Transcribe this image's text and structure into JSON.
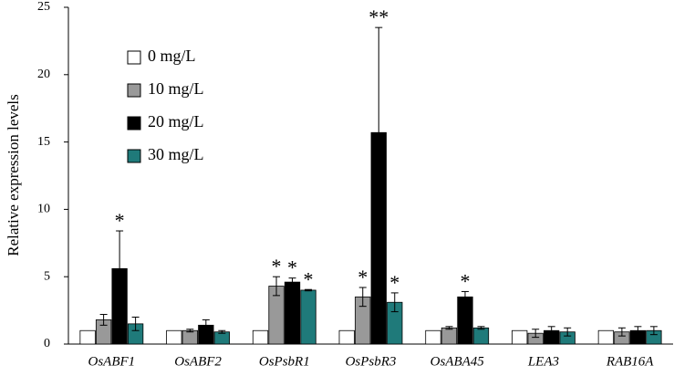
{
  "chart_data": {
    "type": "bar",
    "y_label": "Relative expression levels",
    "categories": [
      "OsABF1",
      "OsABF2",
      "OsPsbR1",
      "OsPsbR3",
      "OsABA45",
      "LEA3",
      "RAB16A"
    ],
    "series": [
      {
        "name": "0 mg/L",
        "color": "#ffffff",
        "values": [
          1,
          1,
          1,
          1,
          1,
          1,
          1
        ]
      },
      {
        "name": "10 mg/L",
        "color": "#999999",
        "values": [
          1.8,
          1.0,
          4.3,
          3.5,
          1.2,
          0.8,
          0.9
        ],
        "errors": [
          0.4,
          0.1,
          0.7,
          0.7,
          0.1,
          0.3,
          0.3
        ],
        "annotations": [
          null,
          null,
          "*",
          "*",
          null,
          null,
          null
        ]
      },
      {
        "name": "20 mg/L",
        "color": "#000000",
        "values": [
          5.6,
          1.4,
          4.6,
          15.7,
          3.5,
          1.0,
          1.0
        ],
        "errors": [
          2.8,
          0.4,
          0.3,
          7.8,
          0.4,
          0.3,
          0.3
        ],
        "annotations": [
          "*",
          null,
          "*",
          "**",
          "*",
          null,
          null
        ]
      },
      {
        "name": "30 mg/L",
        "color": "#1f7a7a",
        "values": [
          1.5,
          0.9,
          4.0,
          3.1,
          1.2,
          0.9,
          1.0
        ],
        "errors": [
          0.5,
          0.1,
          0.05,
          0.7,
          0.1,
          0.3,
          0.3
        ],
        "annotations": [
          null,
          null,
          "*",
          "*",
          null,
          null,
          null
        ]
      }
    ],
    "ylim": [
      0,
      25
    ],
    "yticks": [
      0,
      5,
      10,
      15,
      20,
      25
    ],
    "grid": false,
    "legend": "top-left"
  }
}
